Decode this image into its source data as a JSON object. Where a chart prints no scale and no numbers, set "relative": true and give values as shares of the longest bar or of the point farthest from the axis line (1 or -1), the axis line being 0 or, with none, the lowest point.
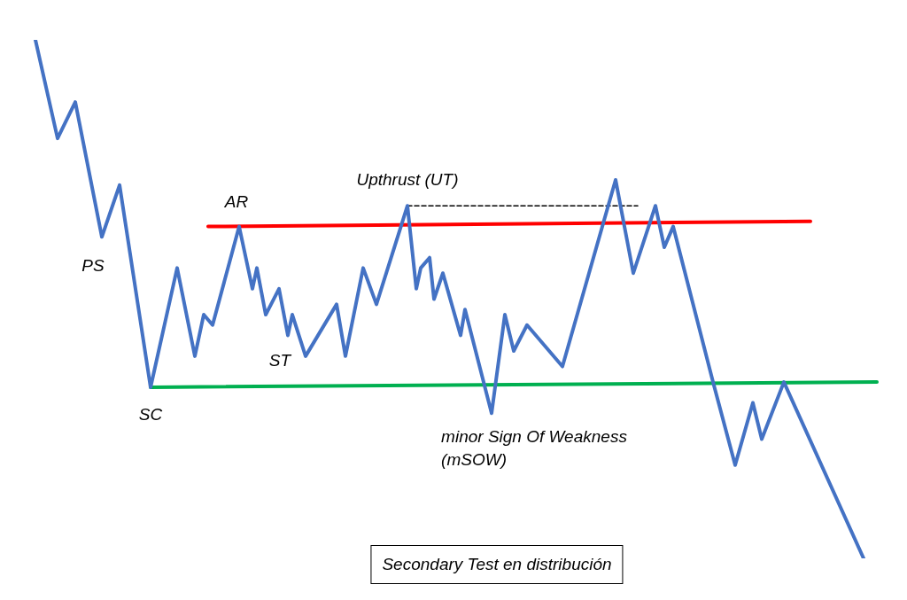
{
  "chart_data": {
    "type": "line",
    "relative": true,
    "marker": "none",
    "legend": false,
    "categories": [
      null,
      null,
      null,
      null,
      null,
      null,
      null,
      null,
      null,
      null,
      null,
      null,
      null,
      null,
      null,
      null,
      null,
      null,
      null,
      null,
      null,
      null,
      null,
      null,
      null,
      null,
      null,
      null,
      null,
      null,
      null,
      null,
      null,
      null,
      null,
      null,
      null,
      null,
      null,
      null,
      null,
      null,
      null,
      null,
      null,
      null,
      null,
      null,
      null,
      null,
      null,
      null,
      null,
      null,
      null,
      null,
      null,
      null,
      null,
      null,
      null,
      null,
      null,
      null,
      null,
      null,
      null,
      null,
      null,
      null,
      null,
      null,
      null,
      null,
      null,
      null,
      null,
      null,
      null,
      null,
      null,
      null,
      null,
      null,
      null,
      null,
      null,
      null,
      null,
      null,
      null,
      null,
      null,
      null,
      null,
      null,
      null,
      null,
      null,
      null,
      null,
      null,
      null,
      null,
      null,
      null,
      null,
      null,
      null,
      null,
      null,
      null,
      null,
      null,
      null,
      null,
      null,
      null,
      null,
      null,
      null,
      null,
      null,
      null,
      null,
      null,
      null,
      null,
      null,
      null,
      null,
      null,
      null,
      null,
      null,
      null,
      null,
      null,
      null,
      null,
      null,
      null,
      null,
      null,
      null,
      null,
      null,
      null,
      null,
      null,
      null,
      null,
      null,
      null,
      null,
      null,
      null,
      null,
      null,
      null,
      null,
      null,
      null,
      null,
      null,
      null,
      null,
      null,
      null,
      null,
      null,
      null,
      null,
      null,
      null,
      null,
      null,
      null,
      null,
      null,
      null,
      null,
      null,
      null,
      null,
      null,
      null,
      null,
      null,
      null,
      null,
      null,
      null,
      null,
      null
    ],
    "series": [
      {
        "color": "#4472c4",
        "line_style": "solid",
        "values": [
          null,
          null,
          1.0,
          null,
          null,
          null,
          null,
          0.81,
          null,
          null,
          null,
          0.88,
          null,
          null,
          null,
          null,
          null,
          0.62,
          null,
          null,
          null,
          0.72,
          null,
          null,
          null,
          null,
          null,
          null,
          0.33,
          null,
          null,
          null,
          null,
          null,
          0.56,
          null,
          null,
          null,
          0.39,
          null,
          0.47,
          null,
          0.45,
          null,
          null,
          null,
          null,
          null,
          0.64,
          null,
          null,
          0.52,
          0.56,
          null,
          0.47,
          null,
          null,
          0.52,
          null,
          0.43,
          0.47,
          null,
          null,
          0.39,
          null,
          null,
          null,
          null,
          null,
          null,
          0.49,
          null,
          0.39,
          null,
          null,
          null,
          0.56,
          null,
          null,
          0.49,
          null,
          null,
          null,
          null,
          null,
          null,
          0.68,
          null,
          0.52,
          0.56,
          null,
          0.58,
          0.5,
          null,
          0.55,
          null,
          null,
          null,
          0.43,
          0.48,
          null,
          null,
          null,
          null,
          null,
          0.28,
          null,
          null,
          0.47,
          null,
          0.4,
          null,
          null,
          0.45,
          null,
          null,
          null,
          null,
          null,
          null,
          null,
          0.37,
          null,
          null,
          null,
          null,
          null,
          null,
          null,
          null,
          null,
          null,
          null,
          0.73,
          null,
          null,
          null,
          0.55,
          null,
          null,
          null,
          null,
          0.68,
          null,
          0.6,
          null,
          0.64,
          null,
          null,
          null,
          null,
          null,
          null,
          null,
          null,
          0.34,
          null,
          null,
          null,
          null,
          0.18,
          null,
          null,
          null,
          0.3,
          null,
          0.23,
          null,
          null,
          null,
          null,
          0.34,
          null,
          null,
          null,
          null,
          null,
          null,
          null,
          null,
          null,
          null,
          null,
          null,
          null,
          null,
          null,
          null,
          null,
          0,
          null,
          null,
          null,
          null,
          null
        ]
      },
      {
        "color": "#ff0000",
        "line_style": "solid",
        "values": [
          null,
          null,
          null,
          null,
          null,
          null,
          null,
          null,
          null,
          null,
          null,
          null,
          null,
          null,
          null,
          null,
          null,
          null,
          null,
          null,
          null,
          null,
          null,
          null,
          null,
          null,
          null,
          null,
          null,
          null,
          null,
          null,
          null,
          null,
          null,
          null,
          null,
          null,
          null,
          null,
          null,
          0.64,
          null,
          null,
          null,
          null,
          null,
          null,
          null,
          null,
          null,
          null,
          null,
          null,
          null,
          null,
          null,
          null,
          null,
          null,
          null,
          null,
          null,
          null,
          null,
          null,
          null,
          null,
          null,
          null,
          null,
          null,
          null,
          null,
          null,
          null,
          null,
          null,
          null,
          null,
          null,
          null,
          null,
          null,
          null,
          null,
          null,
          null,
          null,
          null,
          null,
          null,
          null,
          null,
          null,
          null,
          null,
          null,
          null,
          null,
          null,
          null,
          null,
          null,
          null,
          null,
          null,
          null,
          null,
          null,
          null,
          null,
          null,
          null,
          null,
          null,
          null,
          null,
          null,
          null,
          null,
          null,
          null,
          null,
          null,
          null,
          null,
          null,
          null,
          null,
          null,
          null,
          null,
          null,
          null,
          null,
          null,
          null,
          null,
          null,
          null,
          null,
          null,
          null,
          null,
          null,
          null,
          null,
          null,
          null,
          null,
          null,
          null,
          null,
          null,
          null,
          null,
          null,
          null,
          null,
          null,
          null,
          null,
          null,
          null,
          null,
          null,
          null,
          null,
          null,
          null,
          null,
          null,
          null,
          null,
          null,
          null,
          0.65,
          null,
          null,
          null,
          null,
          null,
          null,
          null,
          null,
          null,
          null,
          null,
          null,
          null,
          null,
          null,
          null,
          null
        ]
      },
      {
        "color": "#00b050",
        "line_style": "solid",
        "values": [
          null,
          null,
          null,
          null,
          null,
          null,
          null,
          null,
          null,
          null,
          null,
          null,
          null,
          null,
          null,
          null,
          null,
          null,
          null,
          null,
          null,
          null,
          null,
          null,
          null,
          null,
          null,
          null,
          0.33,
          null,
          null,
          null,
          null,
          null,
          null,
          null,
          null,
          null,
          null,
          null,
          null,
          null,
          null,
          null,
          null,
          null,
          null,
          null,
          null,
          null,
          null,
          null,
          null,
          null,
          null,
          null,
          null,
          null,
          null,
          null,
          null,
          null,
          null,
          null,
          null,
          null,
          null,
          null,
          null,
          null,
          null,
          null,
          null,
          null,
          null,
          null,
          null,
          null,
          null,
          null,
          null,
          null,
          null,
          null,
          null,
          null,
          null,
          null,
          null,
          null,
          null,
          null,
          null,
          null,
          null,
          null,
          null,
          null,
          null,
          null,
          null,
          null,
          null,
          null,
          null,
          null,
          null,
          null,
          null,
          null,
          null,
          null,
          null,
          null,
          null,
          null,
          null,
          null,
          null,
          null,
          null,
          null,
          null,
          null,
          null,
          null,
          null,
          null,
          null,
          null,
          null,
          null,
          null,
          null,
          null,
          null,
          null,
          null,
          null,
          null,
          null,
          null,
          null,
          null,
          null,
          null,
          null,
          null,
          null,
          null,
          null,
          null,
          null,
          null,
          null,
          null,
          null,
          null,
          null,
          null,
          null,
          null,
          null,
          null,
          null,
          null,
          null,
          null,
          null,
          null,
          null,
          null,
          null,
          null,
          null,
          null,
          null,
          null,
          null,
          null,
          null,
          null,
          null,
          null,
          null,
          null,
          null,
          null,
          null,
          null,
          null,
          null,
          0.34,
          null,
          null
        ]
      },
      {
        "color": "#000000",
        "line_style": "dashed",
        "values": [
          null,
          null,
          null,
          null,
          null,
          null,
          null,
          null,
          null,
          null,
          null,
          null,
          null,
          null,
          null,
          null,
          null,
          null,
          null,
          null,
          null,
          null,
          null,
          null,
          null,
          null,
          null,
          null,
          null,
          null,
          null,
          null,
          null,
          null,
          null,
          null,
          null,
          null,
          null,
          null,
          null,
          null,
          null,
          null,
          null,
          null,
          null,
          null,
          null,
          null,
          null,
          null,
          null,
          null,
          null,
          null,
          null,
          null,
          null,
          null,
          null,
          null,
          null,
          null,
          null,
          null,
          null,
          null,
          null,
          null,
          null,
          null,
          null,
          null,
          null,
          null,
          null,
          null,
          null,
          null,
          null,
          null,
          null,
          null,
          null,
          null,
          0.68,
          null,
          null,
          null,
          null,
          null,
          null,
          null,
          null,
          null,
          null,
          null,
          null,
          null,
          null,
          null,
          null,
          null,
          null,
          null,
          null,
          null,
          null,
          null,
          null,
          null,
          null,
          null,
          null,
          null,
          null,
          null,
          null,
          null,
          null,
          null,
          null,
          null,
          null,
          null,
          null,
          null,
          null,
          null,
          null,
          null,
          null,
          null,
          null,
          null,
          null,
          null,
          0.68,
          null,
          null,
          null,
          null,
          null,
          null,
          null,
          null,
          null,
          null,
          null,
          null,
          null,
          null,
          null,
          null,
          null,
          null,
          null,
          null,
          null,
          null,
          null,
          null,
          null,
          null,
          null,
          null,
          null,
          null,
          null,
          null,
          null,
          null,
          null,
          null,
          null,
          null,
          null,
          null,
          null,
          null,
          null,
          null,
          null,
          null,
          null,
          null,
          null,
          null,
          null,
          null,
          null,
          null,
          null,
          null
        ]
      }
    ],
    "annotations": [
      "AR",
      "PS",
      "SC",
      "ST",
      "Upthrust (UT)",
      "minor Sign Of Weakness\n(mSOW)",
      "Secondary Test en distribución"
    ]
  }
}
